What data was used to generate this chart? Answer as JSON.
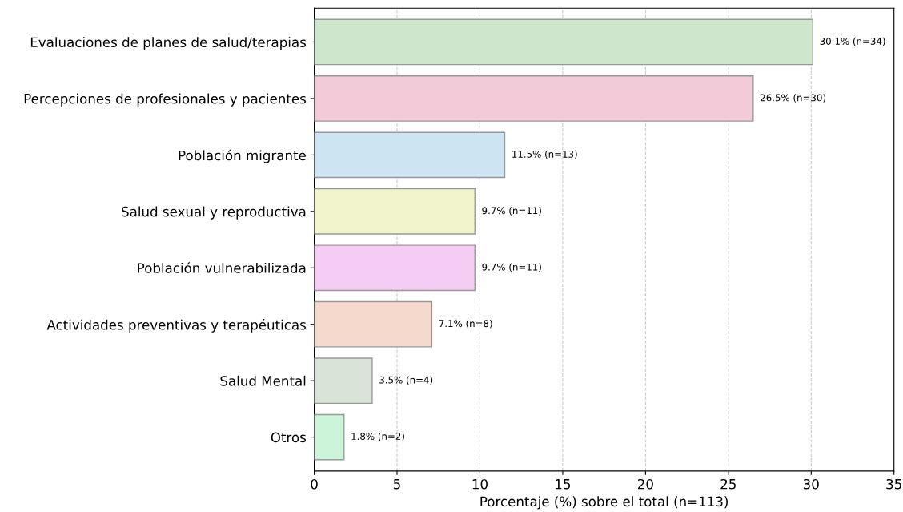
{
  "chart_data": {
    "type": "bar",
    "orientation": "horizontal",
    "xlabel": "Porcentaje (%) sobre el total (n=113)",
    "categories": [
      "Evaluaciones de planes de salud/terapias",
      "Percepciones de profesionales y pacientes",
      "Población migrante",
      "Salud sexual y reproductiva",
      "Población vulnerabilizada",
      "Actividades preventivas y terapéuticas",
      "Salud Mental",
      "Otros"
    ],
    "values": [
      30.1,
      26.5,
      11.5,
      9.7,
      9.7,
      7.1,
      3.5,
      1.8
    ],
    "colors": [
      "#cde6cc",
      "#f3cad8",
      "#cde4f2",
      "#f2f4cc",
      "#f4ccf4",
      "#f4d9cc",
      "#d9e4d9",
      "#ccf4d9"
    ],
    "value_labels": [
      "30.1% (n=34)",
      "26.5% (n=30)",
      "11.5% (n=13)",
      "9.7% (n=11)",
      "9.7% (n=11)",
      "7.1% (n=8)",
      "3.5% (n=4)",
      "1.8% (n=2)"
    ],
    "xlim": [
      0,
      35
    ],
    "xticks": [
      0,
      5,
      10,
      15,
      20,
      25,
      30,
      35
    ],
    "grid": "x"
  }
}
